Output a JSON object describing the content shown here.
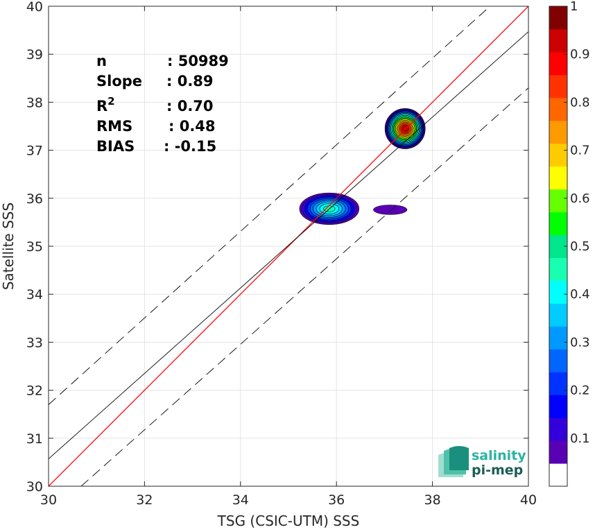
{
  "chart_data": {
    "type": "contour",
    "xlabel": "TSG (CSIC-UTM) SSS",
    "ylabel": "Satellite SSS",
    "xlim": [
      30,
      40
    ],
    "ylim": [
      30,
      40
    ],
    "xticks": [
      30,
      32,
      34,
      36,
      38,
      40
    ],
    "yticks": [
      30,
      31,
      32,
      33,
      34,
      35,
      36,
      37,
      38,
      39,
      40
    ],
    "grid": true,
    "stats": [
      {
        "label": "n",
        "value": ": 50989"
      },
      {
        "label": "Slope",
        "value": ": 0.89"
      },
      {
        "label": "R",
        "sup": "2",
        "value": ": 0.70"
      },
      {
        "label": "RMS",
        "value": ": 0.48"
      },
      {
        "label": "BIAS",
        "value": ": -0.15"
      }
    ],
    "reference_lines": {
      "identity": {
        "slope": 1,
        "intercept": 0,
        "color": "#ff0000"
      },
      "regression": {
        "points": [
          [
            30,
            30.57
          ],
          [
            40,
            39.47
          ]
        ],
        "color": "#000000"
      },
      "bounds_dashed": [
        {
          "points": [
            [
              30,
              31.7
            ],
            [
              39.2,
              40
            ]
          ]
        },
        {
          "points": [
            [
              30.68,
              30
            ],
            [
              40,
              38.3
            ]
          ]
        }
      ]
    },
    "density_clusters": [
      {
        "center": [
          37.43,
          37.45
        ],
        "radius": [
          0.42,
          0.42
        ],
        "peak": 0.95
      },
      {
        "center": [
          35.85,
          35.78
        ],
        "radius": [
          0.62,
          0.33
        ],
        "peak": 0.45
      },
      {
        "center": [
          37.12,
          35.76
        ],
        "radius": [
          0.35,
          0.1
        ],
        "peak": 0.05
      }
    ],
    "colorbar": {
      "min": 0,
      "max": 1,
      "ticks": [
        "0.1",
        "0.2",
        "0.3",
        "0.4",
        "0.5",
        "0.6",
        "0.7",
        "0.8",
        "0.9",
        "1"
      ],
      "colors": [
        "#ffffff",
        "#5a00b4",
        "#3300dc",
        "#0000ff",
        "#0033ff",
        "#0066ff",
        "#0099ff",
        "#00ccff",
        "#00ffff",
        "#19ffb2",
        "#00e68c",
        "#00ff00",
        "#66ff00",
        "#ffff00",
        "#ffcc00",
        "#ff9900",
        "#ff6600",
        "#ff3300",
        "#ff0000",
        "#cc0000",
        "#800000"
      ]
    }
  },
  "logo": {
    "line1": "salinity",
    "line2": "pi-mep"
  }
}
